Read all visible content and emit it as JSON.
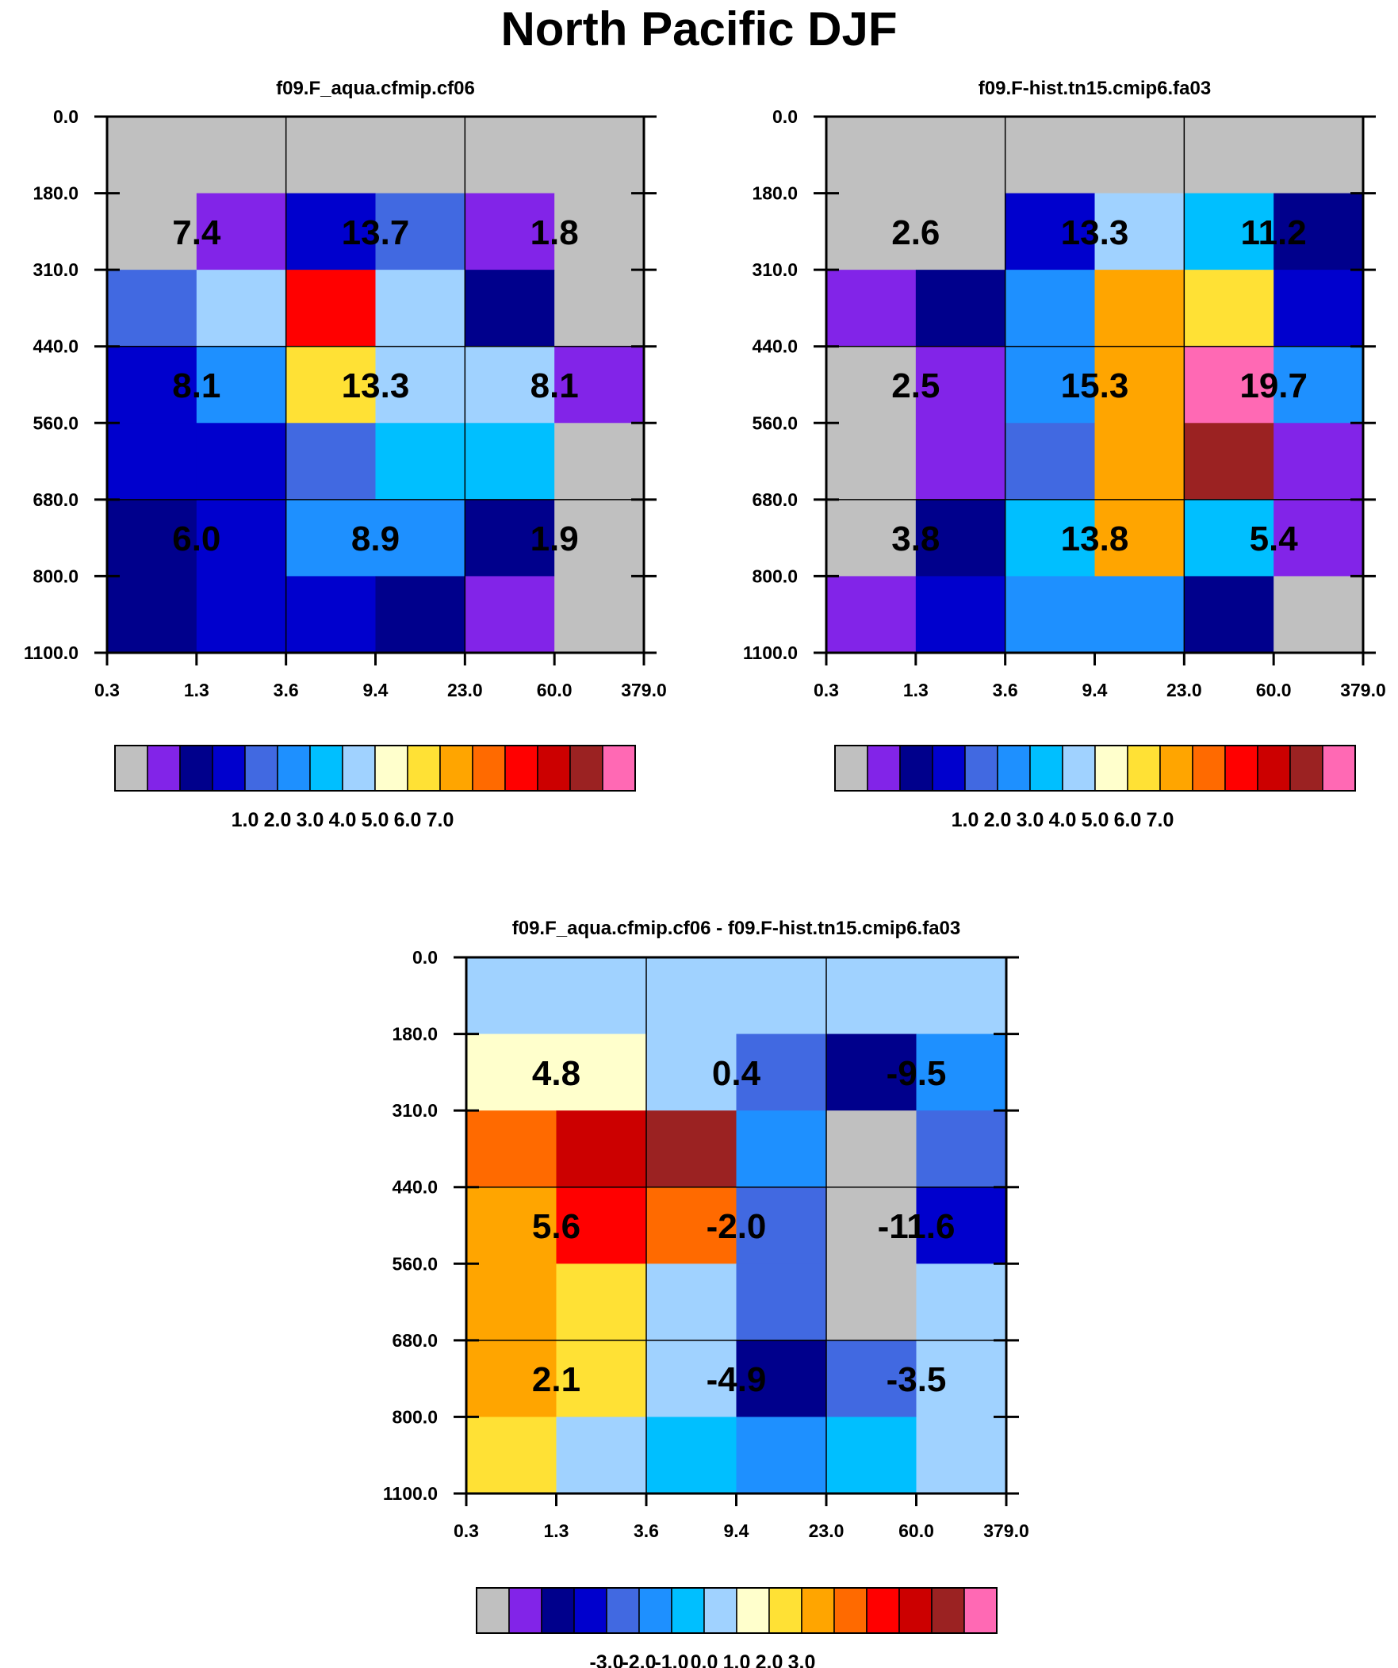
{
  "title": "North Pacific DJF",
  "colors": {
    "palette": [
      "#c0c0c0",
      "#8224e8",
      "#00008c",
      "#0000cd",
      "#4169e1",
      "#1e90ff",
      "#00bfff",
      "#a0d2ff",
      "#ffffcc",
      "#ffe135",
      "#ffa500",
      "#ff6a00",
      "#ff0000",
      "#cc0000",
      "#9b2222",
      "#ff69b4"
    ],
    "axis": "#000000",
    "grid": "#000000"
  },
  "chart_data": [
    {
      "type": "heatmap",
      "name": "panel-cf06",
      "title": "f09.F_aqua.cfmip.cf06",
      "y_ticks": [
        "0.0",
        "180.0",
        "310.0",
        "440.0",
        "560.0",
        "680.0",
        "800.0",
        "1100.0"
      ],
      "x_ticks": [
        "0.3",
        "1.3",
        "3.6",
        "9.4",
        "23.0",
        "60.0",
        "379.0"
      ],
      "cells": [
        [
          0,
          0,
          0,
          0,
          0,
          0
        ],
        [
          0,
          1,
          3,
          4,
          1,
          0
        ],
        [
          4,
          7,
          12,
          7,
          2,
          0
        ],
        [
          3,
          5,
          9,
          7,
          7,
          1
        ],
        [
          3,
          3,
          4,
          6,
          6,
          0
        ],
        [
          2,
          3,
          5,
          5,
          2,
          0
        ],
        [
          2,
          3,
          3,
          2,
          1,
          0
        ]
      ],
      "block_labels": [
        [
          "7.4",
          "13.7",
          "1.8"
        ],
        [
          "8.1",
          "13.3",
          "8.1"
        ],
        [
          "6.0",
          "8.9",
          "1.9"
        ]
      ],
      "colorbar_labels": [
        "1.0",
        "2.0",
        "3.0",
        "4.0",
        "5.0",
        "6.0",
        "7.0"
      ]
    },
    {
      "type": "heatmap",
      "name": "panel-fa03",
      "title": "f09.F-hist.tn15.cmip6.fa03",
      "y_ticks": [
        "0.0",
        "180.0",
        "310.0",
        "440.0",
        "560.0",
        "680.0",
        "800.0",
        "1100.0"
      ],
      "x_ticks": [
        "0.3",
        "1.3",
        "3.6",
        "9.4",
        "23.0",
        "60.0",
        "379.0"
      ],
      "cells": [
        [
          0,
          0,
          0,
          0,
          0,
          0
        ],
        [
          0,
          0,
          3,
          7,
          6,
          2
        ],
        [
          1,
          2,
          5,
          10,
          9,
          3
        ],
        [
          0,
          1,
          5,
          10,
          15,
          5
        ],
        [
          0,
          1,
          4,
          10,
          14,
          1
        ],
        [
          0,
          2,
          6,
          10,
          6,
          1
        ],
        [
          1,
          3,
          5,
          5,
          2,
          0
        ]
      ],
      "block_labels": [
        [
          "2.6",
          "13.3",
          "11.2"
        ],
        [
          "2.5",
          "15.3",
          "19.7"
        ],
        [
          "3.8",
          "13.8",
          "5.4"
        ]
      ],
      "colorbar_labels": [
        "1.0",
        "2.0",
        "3.0",
        "4.0",
        "5.0",
        "6.0",
        "7.0"
      ]
    },
    {
      "type": "heatmap",
      "name": "panel-diff",
      "title": "f09.F_aqua.cfmip.cf06 - f09.F-hist.tn15.cmip6.fa03",
      "y_ticks": [
        "0.0",
        "180.0",
        "310.0",
        "440.0",
        "560.0",
        "680.0",
        "800.0",
        "1100.0"
      ],
      "x_ticks": [
        "0.3",
        "1.3",
        "3.6",
        "9.4",
        "23.0",
        "60.0",
        "379.0"
      ],
      "cells": [
        [
          7,
          7,
          7,
          7,
          7,
          7
        ],
        [
          8,
          8,
          7,
          4,
          2,
          5
        ],
        [
          11,
          13,
          14,
          5,
          0,
          4
        ],
        [
          10,
          12,
          11,
          4,
          0,
          3
        ],
        [
          10,
          9,
          7,
          4,
          0,
          7
        ],
        [
          10,
          9,
          7,
          2,
          4,
          7
        ],
        [
          9,
          7,
          6,
          5,
          6,
          7
        ]
      ],
      "block_labels": [
        [
          "4.8",
          "0.4",
          "-9.5"
        ],
        [
          "5.6",
          "-2.0",
          "-11.6"
        ],
        [
          "2.1",
          "-4.9",
          "-3.5"
        ]
      ],
      "colorbar_labels": [
        "-3.0",
        "-2.0",
        "-1.0",
        "0.0",
        "1.0",
        "2.0",
        "3.0"
      ]
    }
  ]
}
